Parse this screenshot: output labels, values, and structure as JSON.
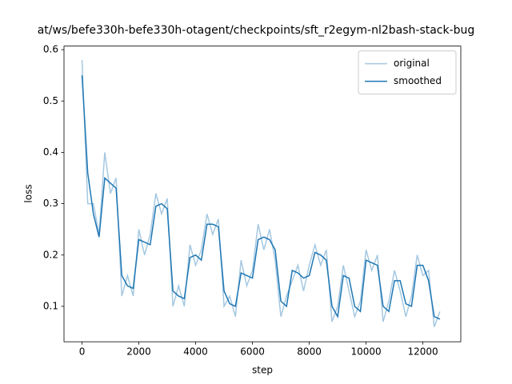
{
  "chart_data": {
    "type": "line",
    "title": "at/ws/befe330h-befe330h-otagent/checkpoints/sft_r2egym-nl2bash-stack-bug",
    "x_label": "step",
    "y_label": "loss",
    "x": [
      0,
      200,
      400,
      600,
      800,
      1000,
      1200,
      1400,
      1600,
      1800,
      2000,
      2200,
      2400,
      2600,
      2800,
      3000,
      3200,
      3400,
      3600,
      3800,
      4000,
      4200,
      4400,
      4600,
      4800,
      5000,
      5200,
      5400,
      5600,
      5800,
      6000,
      6200,
      6400,
      6600,
      6800,
      7000,
      7200,
      7400,
      7600,
      7800,
      8000,
      8200,
      8400,
      8600,
      8800,
      9000,
      9200,
      9400,
      9600,
      9800,
      10000,
      10200,
      10400,
      10600,
      10800,
      11000,
      11200,
      11400,
      11600,
      11800,
      12000,
      12200,
      12400,
      12600
    ],
    "series": [
      {
        "name": "original",
        "color": "#a5c8e1",
        "values": [
          0.58,
          0.3,
          0.3,
          0.24,
          0.4,
          0.32,
          0.35,
          0.12,
          0.16,
          0.12,
          0.25,
          0.2,
          0.24,
          0.32,
          0.28,
          0.31,
          0.1,
          0.14,
          0.1,
          0.22,
          0.18,
          0.21,
          0.28,
          0.24,
          0.27,
          0.1,
          0.12,
          0.08,
          0.19,
          0.14,
          0.17,
          0.26,
          0.21,
          0.25,
          0.19,
          0.08,
          0.12,
          0.15,
          0.18,
          0.13,
          0.18,
          0.22,
          0.18,
          0.21,
          0.07,
          0.1,
          0.18,
          0.13,
          0.08,
          0.11,
          0.21,
          0.17,
          0.2,
          0.07,
          0.11,
          0.17,
          0.13,
          0.08,
          0.12,
          0.2,
          0.16,
          0.17,
          0.06,
          0.09
        ]
      },
      {
        "name": "smoothed",
        "color": "#1f77b4",
        "values": [
          0.55,
          0.36,
          0.28,
          0.235,
          0.35,
          0.34,
          0.33,
          0.16,
          0.14,
          0.135,
          0.23,
          0.225,
          0.22,
          0.295,
          0.3,
          0.29,
          0.13,
          0.12,
          0.115,
          0.195,
          0.2,
          0.19,
          0.26,
          0.26,
          0.255,
          0.13,
          0.105,
          0.1,
          0.165,
          0.16,
          0.155,
          0.23,
          0.235,
          0.23,
          0.21,
          0.11,
          0.1,
          0.17,
          0.165,
          0.155,
          0.16,
          0.205,
          0.2,
          0.19,
          0.1,
          0.08,
          0.16,
          0.155,
          0.1,
          0.09,
          0.19,
          0.185,
          0.18,
          0.1,
          0.09,
          0.15,
          0.15,
          0.105,
          0.1,
          0.18,
          0.18,
          0.15,
          0.08,
          0.075
        ]
      }
    ],
    "xlim": [
      -635,
      13335
    ],
    "ylim": [
      0.031,
      0.607
    ],
    "xticks": [
      0,
      2000,
      4000,
      6000,
      8000,
      10000,
      12000
    ],
    "yticks": [
      0.1,
      0.2,
      0.3,
      0.4,
      0.5,
      0.6
    ],
    "legend": "upper right"
  }
}
